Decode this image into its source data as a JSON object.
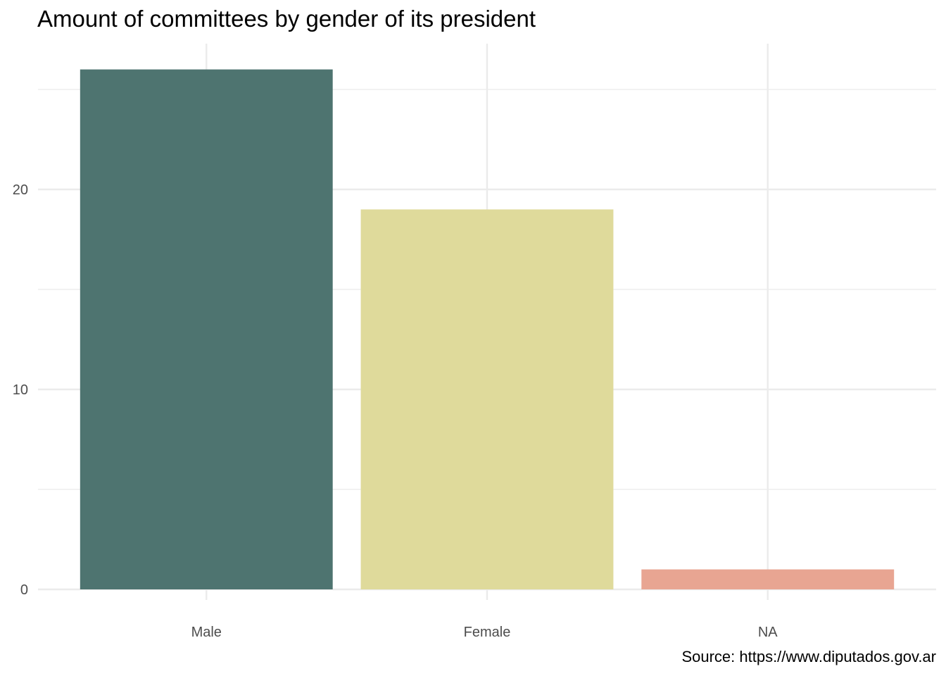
{
  "chart_data": {
    "type": "bar",
    "title": "Amount of committees by gender of its president",
    "caption": "Source: https://www.diputados.gov.ar",
    "xlabel": "",
    "ylabel": "",
    "categories": [
      "Male",
      "Female",
      "NA"
    ],
    "values": [
      26,
      19,
      1
    ],
    "colors": [
      "#4e7470",
      "#dfda9b",
      "#e8a592"
    ],
    "ylim": [
      0,
      27.3
    ],
    "yticks": [
      0,
      10,
      20
    ],
    "grid": true,
    "legend": "none"
  }
}
